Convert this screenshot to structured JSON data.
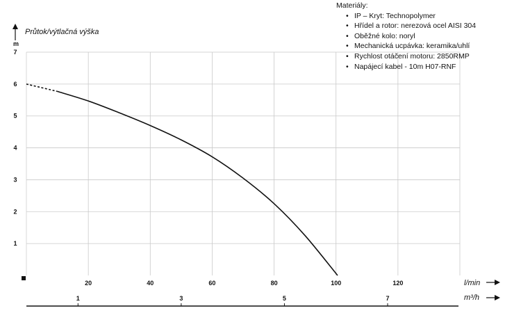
{
  "materials": {
    "heading": "Materiály:",
    "items": [
      "IP – Kryt: Technopolymer",
      "Hřídel a rotor: nerezová ocel AISI 304",
      "Oběžné kolo: noryl",
      "Mechanická ucpávka: keramika/uhlí",
      "Rychlost otáčení motoru: 2850RMP",
      "Napájecí kabel - 10m H07-RNF"
    ]
  },
  "chart_data": {
    "type": "line",
    "title": "",
    "ylabel": "Průtok/výtlačná výška",
    "yunit": "m",
    "xlabel": "l/min",
    "x2label": "m³/h",
    "ylim": [
      0,
      7
    ],
    "xlim": [
      0,
      140
    ],
    "x2lim": [
      0,
      8.4
    ],
    "grid": true,
    "yticks": [
      1,
      2,
      3,
      4,
      5,
      6,
      7
    ],
    "xticks": [
      20,
      40,
      60,
      80,
      100,
      120
    ],
    "x2ticks": [
      1,
      3,
      5,
      7
    ],
    "series": [
      {
        "x": [
          0,
          10,
          20,
          30,
          40,
          50,
          60,
          70,
          80,
          90,
          100.5
        ],
        "y": [
          6.0,
          5.77,
          5.47,
          5.1,
          4.7,
          4.25,
          3.72,
          3.05,
          2.25,
          1.25,
          0.0
        ],
        "dashed_until_x": 10
      }
    ]
  }
}
